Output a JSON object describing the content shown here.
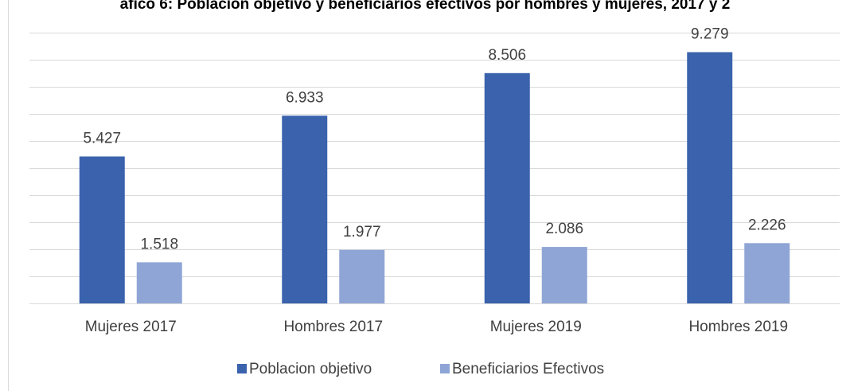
{
  "chart_data": {
    "type": "bar",
    "title": "áfico 6: Poblacion objetivo y beneficiarios efectivos por hombres y mujeres, 2017 y 2",
    "categories": [
      "Mujeres 2017",
      "Hombres 2017",
      "Mujeres 2019",
      "Hombres 2019"
    ],
    "series": [
      {
        "name": "Poblacion objetivo",
        "color": "#3a62ad",
        "values": [
          5427,
          6933,
          8506,
          9279
        ],
        "value_labels": [
          "5.427",
          "6.933",
          "8.506",
          "9.279"
        ]
      },
      {
        "name": "Beneficiarios Efectivos",
        "color": "#8fa5d6",
        "values": [
          1518,
          1977,
          2086,
          2226
        ],
        "value_labels": [
          "1.518",
          "1.977",
          "2.086",
          "2.226"
        ]
      }
    ],
    "ylim": [
      0,
      10000
    ],
    "yticks": [
      0,
      1000,
      2000,
      3000,
      4000,
      5000,
      6000,
      7000,
      8000,
      9000,
      10000
    ],
    "grid": true,
    "legend": "bottom"
  }
}
